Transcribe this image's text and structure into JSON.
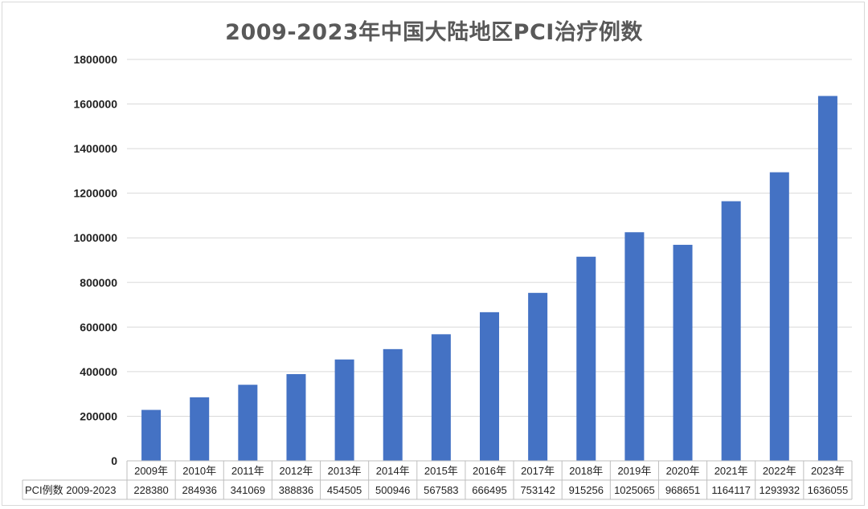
{
  "chart_data": {
    "type": "bar",
    "title": "2009-2023年中国大陆地区PCI治疗例数",
    "categories": [
      "2009年",
      "2010年",
      "2011年",
      "2012年",
      "2013年",
      "2014年",
      "2015年",
      "2016年",
      "2017年",
      "2018年",
      "2019年",
      "2020年",
      "2021年",
      "2022年",
      "2023年"
    ],
    "series": [
      {
        "name": "PCI例数 2009-2023",
        "values": [
          228380,
          284936,
          341069,
          388836,
          454505,
          500946,
          567583,
          666495,
          753142,
          915256,
          1025065,
          968651,
          1164117,
          1293932,
          1636055
        ]
      }
    ],
    "yticks": [
      "0",
      "200000",
      "400000",
      "600000",
      "800000",
      "1000000",
      "1200000",
      "1400000",
      "1600000",
      "1800000"
    ],
    "ylim": [
      0,
      1800000
    ],
    "grid": true,
    "legend": "data-table",
    "bar_color": "#4472c4",
    "grid_color": "#d9d9d9"
  }
}
